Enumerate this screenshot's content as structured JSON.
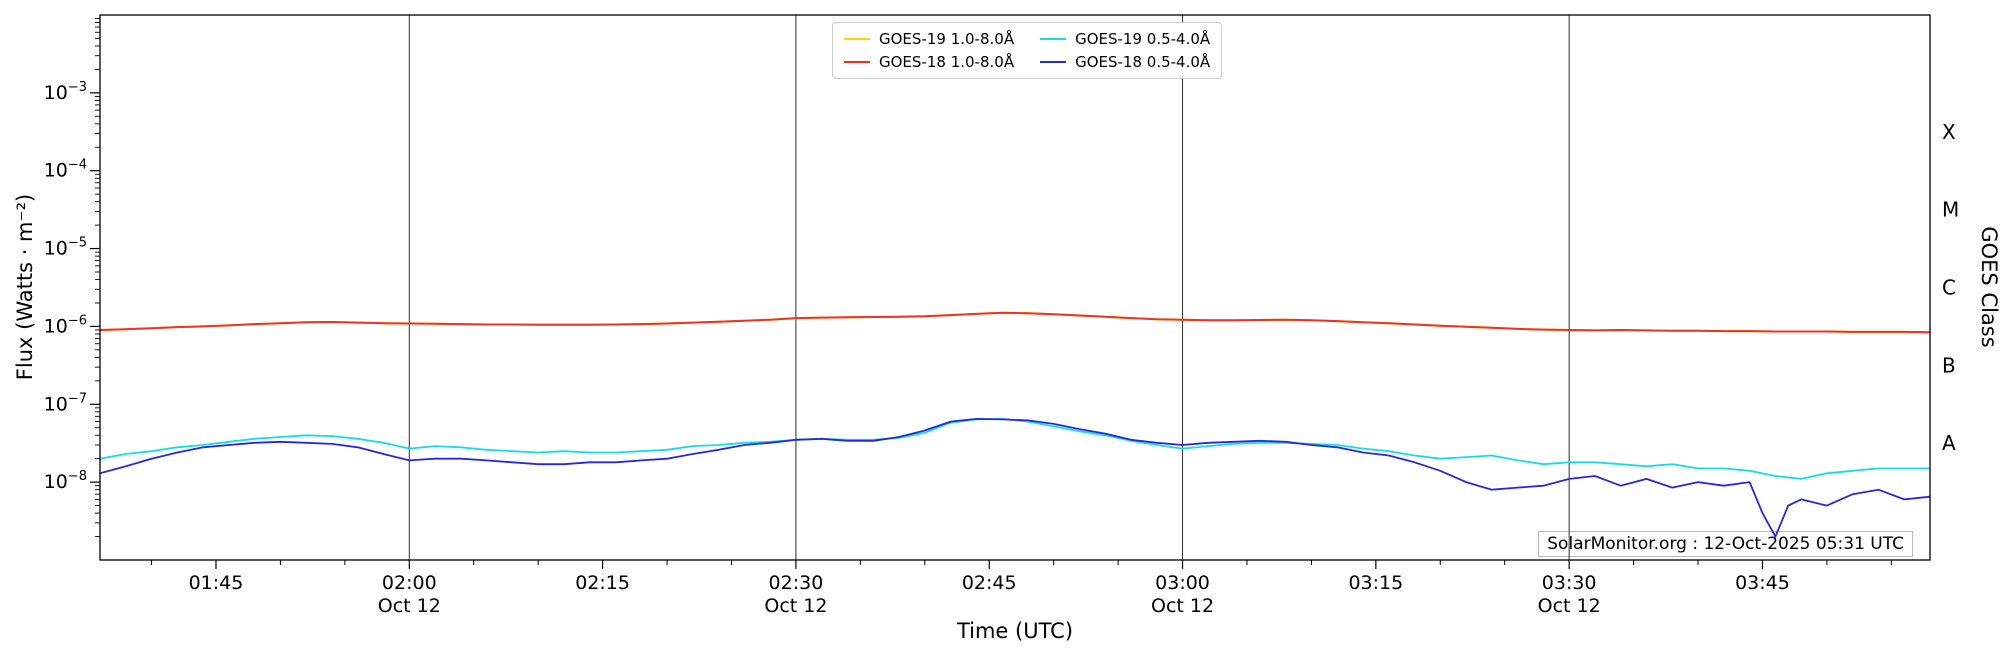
{
  "chart_data": {
    "type": "line",
    "title": "",
    "xlabel": "Time (UTC)",
    "ylabel": "Flux (Watts · m⁻²)",
    "ylabel_right": "GOES Class",
    "annotation": "SolarMonitor.org : 12-Oct-2025 05:31 UTC",
    "x_units": "minutes_after_midnight_utc",
    "x_min": 96,
    "x_max": 238,
    "y_log_max": -2,
    "y_log_min": -9,
    "grid": true,
    "grid_minutes": [
      120,
      150,
      180,
      210
    ],
    "legend_position": "top-center",
    "x_ticks": [
      {
        "m": 105,
        "label": "01:45"
      },
      {
        "m": 120,
        "label": "02:00",
        "sub": "Oct 12"
      },
      {
        "m": 135,
        "label": "02:15"
      },
      {
        "m": 150,
        "label": "02:30",
        "sub": "Oct 12"
      },
      {
        "m": 165,
        "label": "02:45"
      },
      {
        "m": 180,
        "label": "03:00",
        "sub": "Oct 12"
      },
      {
        "m": 195,
        "label": "03:15"
      },
      {
        "m": 210,
        "label": "03:30",
        "sub": "Oct 12"
      },
      {
        "m": 225,
        "label": "03:45"
      }
    ],
    "y_ticks": [
      {
        "log": -3,
        "mantissa": "10",
        "exponent": "−3"
      },
      {
        "log": -4,
        "mantissa": "10",
        "exponent": "−4"
      },
      {
        "log": -5,
        "mantissa": "10",
        "exponent": "−5"
      },
      {
        "log": -6,
        "mantissa": "10",
        "exponent": "−6"
      },
      {
        "log": -7,
        "mantissa": "10",
        "exponent": "−7"
      },
      {
        "log": -8,
        "mantissa": "10",
        "exponent": "−8"
      }
    ],
    "goes_classes": [
      {
        "label": "X",
        "log": -3.5
      },
      {
        "label": "M",
        "log": -4.5
      },
      {
        "label": "C",
        "log": -5.5
      },
      {
        "label": "B",
        "log": -6.5
      },
      {
        "label": "A",
        "log": -7.5
      }
    ],
    "series": [
      {
        "id": "goes19-long",
        "name": "GOES-19 1.0-8.0Å",
        "color": "#ffd400",
        "width": 2,
        "points_from": "GOES-18 1.0-8.0Å",
        "points": []
      },
      {
        "id": "goes18-long",
        "name": "GOES-18 1.0-8.0Å",
        "color": "#ee3322",
        "width": 2,
        "points": [
          [
            96,
            9e-07
          ],
          [
            98,
            9.2e-07
          ],
          [
            100,
            9.5e-07
          ],
          [
            102,
            9.8e-07
          ],
          [
            104,
            1e-06
          ],
          [
            106,
            1.03e-06
          ],
          [
            108,
            1.07e-06
          ],
          [
            110,
            1.1e-06
          ],
          [
            112,
            1.13e-06
          ],
          [
            114,
            1.14e-06
          ],
          [
            116,
            1.12e-06
          ],
          [
            118,
            1.1e-06
          ],
          [
            120,
            1.09e-06
          ],
          [
            122,
            1.08e-06
          ],
          [
            124,
            1.07e-06
          ],
          [
            126,
            1.06e-06
          ],
          [
            128,
            1.06e-06
          ],
          [
            130,
            1.05e-06
          ],
          [
            132,
            1.05e-06
          ],
          [
            134,
            1.05e-06
          ],
          [
            136,
            1.06e-06
          ],
          [
            138,
            1.07e-06
          ],
          [
            140,
            1.09e-06
          ],
          [
            142,
            1.12e-06
          ],
          [
            144,
            1.15e-06
          ],
          [
            146,
            1.18e-06
          ],
          [
            148,
            1.22e-06
          ],
          [
            150,
            1.28e-06
          ],
          [
            152,
            1.3e-06
          ],
          [
            154,
            1.31e-06
          ],
          [
            156,
            1.32e-06
          ],
          [
            158,
            1.33e-06
          ],
          [
            160,
            1.35e-06
          ],
          [
            162,
            1.4e-06
          ],
          [
            164,
            1.45e-06
          ],
          [
            166,
            1.5e-06
          ],
          [
            168,
            1.48e-06
          ],
          [
            170,
            1.43e-06
          ],
          [
            172,
            1.38e-06
          ],
          [
            174,
            1.33e-06
          ],
          [
            176,
            1.28e-06
          ],
          [
            178,
            1.24e-06
          ],
          [
            180,
            1.22e-06
          ],
          [
            182,
            1.2e-06
          ],
          [
            184,
            1.2e-06
          ],
          [
            186,
            1.21e-06
          ],
          [
            188,
            1.22e-06
          ],
          [
            190,
            1.2e-06
          ],
          [
            192,
            1.17e-06
          ],
          [
            194,
            1.13e-06
          ],
          [
            196,
            1.1e-06
          ],
          [
            198,
            1.06e-06
          ],
          [
            200,
            1.02e-06
          ],
          [
            202,
            9.9e-07
          ],
          [
            204,
            9.6e-07
          ],
          [
            206,
            9.3e-07
          ],
          [
            208,
            9.1e-07
          ],
          [
            210,
            9e-07
          ],
          [
            212,
            8.9e-07
          ],
          [
            214,
            9e-07
          ],
          [
            216,
            8.9e-07
          ],
          [
            218,
            8.8e-07
          ],
          [
            220,
            8.8e-07
          ],
          [
            222,
            8.7e-07
          ],
          [
            224,
            8.7e-07
          ],
          [
            226,
            8.6e-07
          ],
          [
            228,
            8.6e-07
          ],
          [
            230,
            8.6e-07
          ],
          [
            232,
            8.5e-07
          ],
          [
            234,
            8.5e-07
          ],
          [
            236,
            8.5e-07
          ],
          [
            238,
            8.4e-07
          ]
        ]
      },
      {
        "id": "goes19-short",
        "name": "GOES-19 0.5-4.0Å",
        "color": "#17dde3",
        "width": 1.8,
        "points": [
          [
            96,
            2e-08
          ],
          [
            98,
            2.3e-08
          ],
          [
            100,
            2.5e-08
          ],
          [
            102,
            2.8e-08
          ],
          [
            104,
            3e-08
          ],
          [
            106,
            3.3e-08
          ],
          [
            108,
            3.6e-08
          ],
          [
            110,
            3.8e-08
          ],
          [
            112,
            4e-08
          ],
          [
            114,
            3.9e-08
          ],
          [
            116,
            3.6e-08
          ],
          [
            118,
            3.2e-08
          ],
          [
            120,
            2.7e-08
          ],
          [
            122,
            2.9e-08
          ],
          [
            124,
            2.8e-08
          ],
          [
            126,
            2.6e-08
          ],
          [
            128,
            2.5e-08
          ],
          [
            130,
            2.4e-08
          ],
          [
            132,
            2.5e-08
          ],
          [
            134,
            2.4e-08
          ],
          [
            136,
            2.4e-08
          ],
          [
            138,
            2.5e-08
          ],
          [
            140,
            2.6e-08
          ],
          [
            142,
            2.9e-08
          ],
          [
            144,
            3e-08
          ],
          [
            146,
            3.2e-08
          ],
          [
            148,
            3.3e-08
          ],
          [
            150,
            3.5e-08
          ],
          [
            152,
            3.6e-08
          ],
          [
            154,
            3.5e-08
          ],
          [
            156,
            3.5e-08
          ],
          [
            158,
            3.7e-08
          ],
          [
            160,
            4.3e-08
          ],
          [
            162,
            5.8e-08
          ],
          [
            164,
            6.4e-08
          ],
          [
            166,
            6.5e-08
          ],
          [
            168,
            6e-08
          ],
          [
            170,
            5.2e-08
          ],
          [
            172,
            4.5e-08
          ],
          [
            174,
            4e-08
          ],
          [
            176,
            3.4e-08
          ],
          [
            178,
            3e-08
          ],
          [
            180,
            2.7e-08
          ],
          [
            182,
            2.9e-08
          ],
          [
            184,
            3.1e-08
          ],
          [
            186,
            3.2e-08
          ],
          [
            188,
            3.2e-08
          ],
          [
            190,
            3.1e-08
          ],
          [
            192,
            3e-08
          ],
          [
            194,
            2.7e-08
          ],
          [
            196,
            2.5e-08
          ],
          [
            198,
            2.2e-08
          ],
          [
            200,
            2e-08
          ],
          [
            202,
            2.1e-08
          ],
          [
            204,
            2.2e-08
          ],
          [
            206,
            1.9e-08
          ],
          [
            208,
            1.7e-08
          ],
          [
            210,
            1.8e-08
          ],
          [
            212,
            1.8e-08
          ],
          [
            214,
            1.7e-08
          ],
          [
            216,
            1.6e-08
          ],
          [
            218,
            1.7e-08
          ],
          [
            220,
            1.5e-08
          ],
          [
            222,
            1.5e-08
          ],
          [
            224,
            1.4e-08
          ],
          [
            226,
            1.2e-08
          ],
          [
            228,
            1.1e-08
          ],
          [
            230,
            1.3e-08
          ],
          [
            232,
            1.4e-08
          ],
          [
            234,
            1.5e-08
          ],
          [
            236,
            1.5e-08
          ],
          [
            238,
            1.5e-08
          ]
        ]
      },
      {
        "id": "goes18-short",
        "name": "GOES-18 0.5-4.0Å",
        "color": "#2828d8",
        "width": 1.8,
        "points": [
          [
            96,
            1.3e-08
          ],
          [
            98,
            1.6e-08
          ],
          [
            100,
            2e-08
          ],
          [
            102,
            2.4e-08
          ],
          [
            104,
            2.8e-08
          ],
          [
            106,
            3e-08
          ],
          [
            108,
            3.2e-08
          ],
          [
            110,
            3.3e-08
          ],
          [
            112,
            3.2e-08
          ],
          [
            114,
            3.1e-08
          ],
          [
            116,
            2.8e-08
          ],
          [
            118,
            2.3e-08
          ],
          [
            120,
            1.9e-08
          ],
          [
            122,
            2e-08
          ],
          [
            124,
            2e-08
          ],
          [
            126,
            1.9e-08
          ],
          [
            128,
            1.8e-08
          ],
          [
            130,
            1.7e-08
          ],
          [
            132,
            1.7e-08
          ],
          [
            134,
            1.8e-08
          ],
          [
            136,
            1.8e-08
          ],
          [
            138,
            1.9e-08
          ],
          [
            140,
            2e-08
          ],
          [
            142,
            2.3e-08
          ],
          [
            144,
            2.6e-08
          ],
          [
            146,
            3e-08
          ],
          [
            148,
            3.2e-08
          ],
          [
            150,
            3.5e-08
          ],
          [
            152,
            3.6e-08
          ],
          [
            154,
            3.4e-08
          ],
          [
            156,
            3.4e-08
          ],
          [
            158,
            3.8e-08
          ],
          [
            160,
            4.6e-08
          ],
          [
            162,
            6e-08
          ],
          [
            164,
            6.5e-08
          ],
          [
            166,
            6.4e-08
          ],
          [
            168,
            6.2e-08
          ],
          [
            170,
            5.6e-08
          ],
          [
            172,
            4.8e-08
          ],
          [
            174,
            4.2e-08
          ],
          [
            176,
            3.5e-08
          ],
          [
            178,
            3.2e-08
          ],
          [
            180,
            3e-08
          ],
          [
            182,
            3.2e-08
          ],
          [
            184,
            3.3e-08
          ],
          [
            186,
            3.4e-08
          ],
          [
            188,
            3.3e-08
          ],
          [
            190,
            3e-08
          ],
          [
            192,
            2.8e-08
          ],
          [
            194,
            2.4e-08
          ],
          [
            196,
            2.2e-08
          ],
          [
            198,
            1.8e-08
          ],
          [
            200,
            1.4e-08
          ],
          [
            202,
            1e-08
          ],
          [
            204,
            8e-09
          ],
          [
            206,
            8.5e-09
          ],
          [
            208,
            9e-09
          ],
          [
            210,
            1.1e-08
          ],
          [
            212,
            1.2e-08
          ],
          [
            214,
            9e-09
          ],
          [
            216,
            1.1e-08
          ],
          [
            218,
            8.5e-09
          ],
          [
            220,
            1e-08
          ],
          [
            222,
            9e-09
          ],
          [
            224,
            1e-08
          ],
          [
            225,
            4e-09
          ],
          [
            226,
            2e-09
          ],
          [
            227,
            5e-09
          ],
          [
            228,
            6e-09
          ],
          [
            230,
            5e-09
          ],
          [
            232,
            7e-09
          ],
          [
            234,
            8e-09
          ],
          [
            236,
            6e-09
          ],
          [
            238,
            6.5e-09
          ]
        ]
      }
    ]
  }
}
